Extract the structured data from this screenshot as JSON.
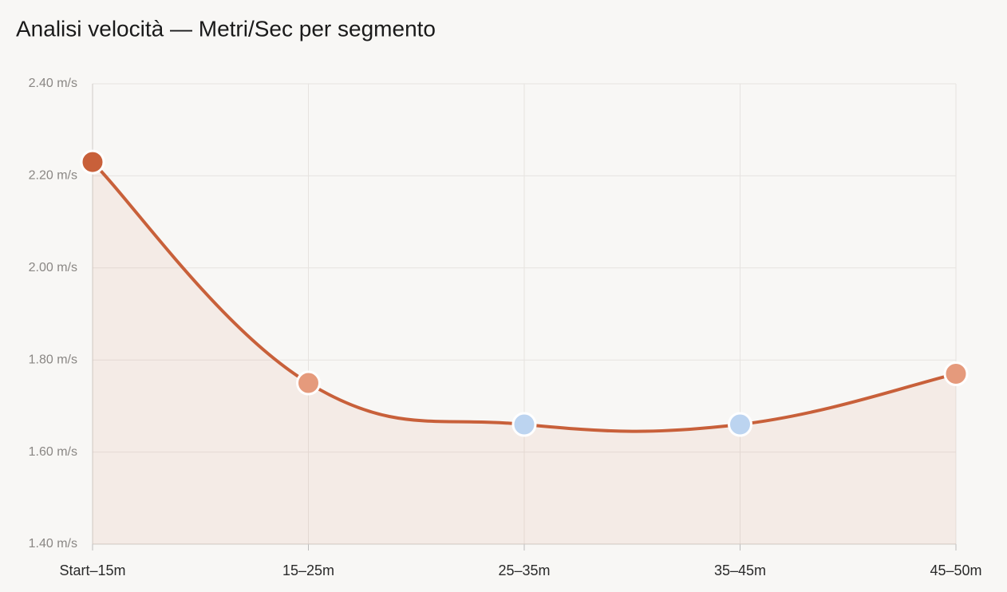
{
  "chart_data": {
    "type": "line",
    "title": "Analisi velocità — Metri/Sec per segmento",
    "categories": [
      "Start–15m",
      "15–25m",
      "25–35m",
      "35–45m",
      "45–50m"
    ],
    "series": [
      {
        "values": [
          2.23,
          1.75,
          1.66,
          1.66,
          1.77
        ],
        "color": "#c8603a",
        "point_colors": [
          "#c8603a",
          "#e59a7c",
          "#bcd4f0",
          "#bcd4f0",
          "#e59a7c"
        ]
      }
    ],
    "ylim": [
      1.4,
      2.4
    ],
    "yticks": [
      {
        "value": 1.4,
        "label": "1.40 m/s"
      },
      {
        "value": 1.6,
        "label": "1.60 m/s"
      },
      {
        "value": 1.8,
        "label": "1.80 m/s"
      },
      {
        "value": 2.0,
        "label": "2.00 m/s"
      },
      {
        "value": 2.2,
        "label": "2.20 m/s"
      },
      {
        "value": 2.4,
        "label": "2.40 m/s"
      }
    ],
    "grid": true,
    "smooth": true,
    "area": true
  }
}
